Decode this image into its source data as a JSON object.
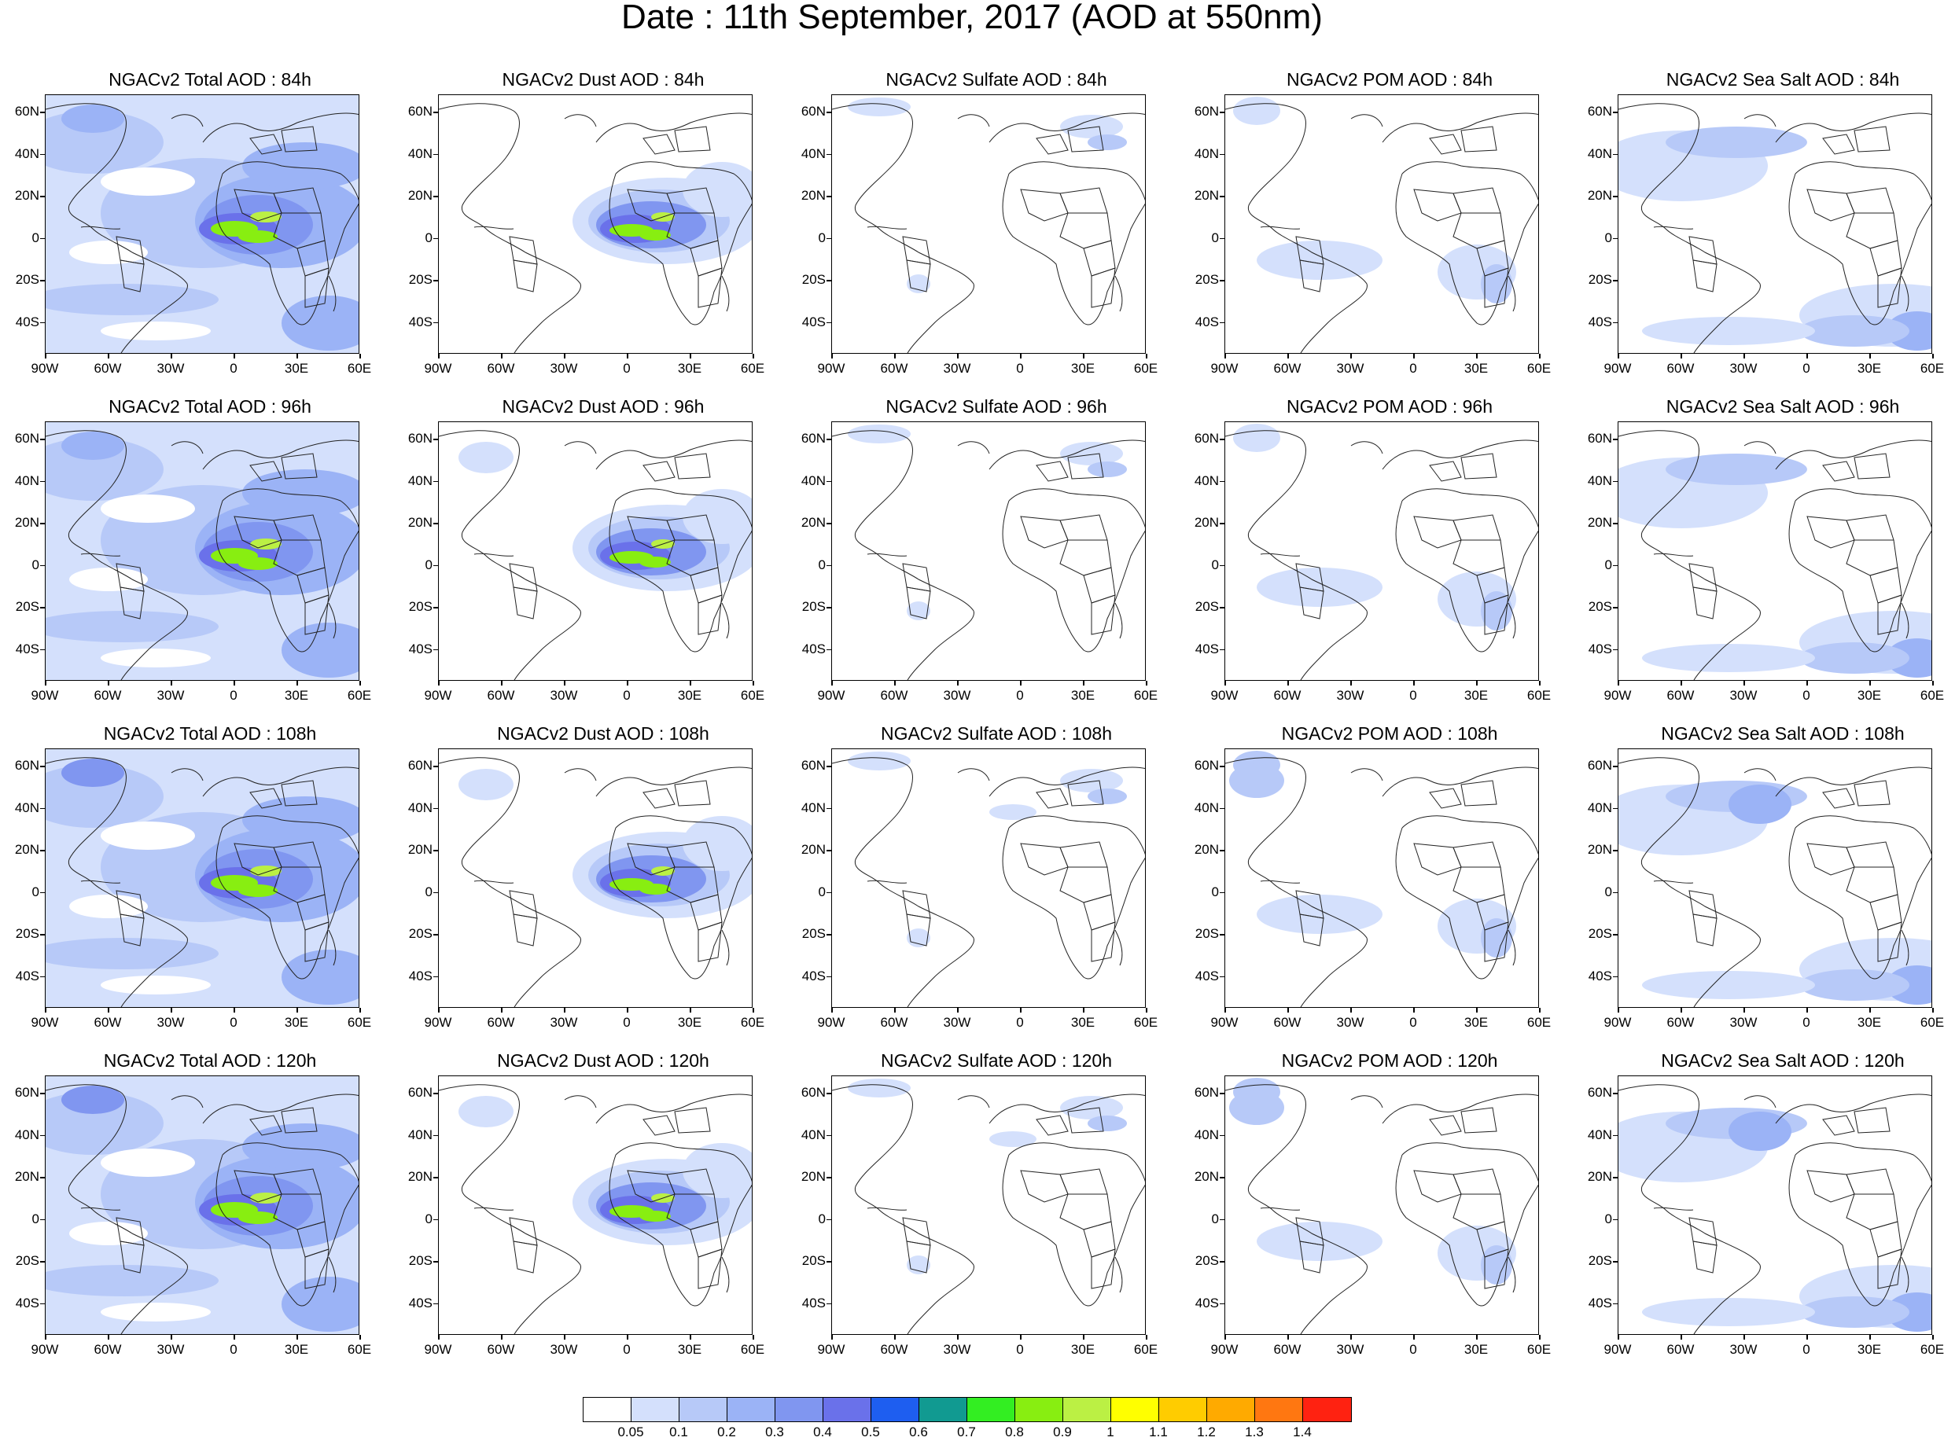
{
  "figure": {
    "title": "Date : 11th September, 2017 (AOD at 550nm)"
  },
  "axes": {
    "lat_labels": [
      "60N",
      "40N",
      "20N",
      "0",
      "20S",
      "40S"
    ],
    "lon_labels": [
      "90W",
      "60W",
      "30W",
      "0",
      "30E",
      "60E"
    ]
  },
  "panels": [
    {
      "title": "NGACv2 Total AOD : 84h",
      "species": "total"
    },
    {
      "title": "NGACv2 Dust AOD : 84h",
      "species": "dust"
    },
    {
      "title": "NGACv2 Sulfate AOD : 84h",
      "species": "sulfate"
    },
    {
      "title": "NGACv2 POM AOD : 84h",
      "species": "pom"
    },
    {
      "title": "NGACv2 Sea Salt AOD : 84h",
      "species": "seasalt"
    },
    {
      "title": "NGACv2 Total AOD : 96h",
      "species": "total"
    },
    {
      "title": "NGACv2 Dust AOD : 96h",
      "species": "dust"
    },
    {
      "title": "NGACv2 Sulfate AOD : 96h",
      "species": "sulfate"
    },
    {
      "title": "NGACv2 POM AOD : 96h",
      "species": "pom"
    },
    {
      "title": "NGACv2 Sea Salt AOD : 96h",
      "species": "seasalt"
    },
    {
      "title": "NGACv2 Total AOD : 108h",
      "species": "total"
    },
    {
      "title": "NGACv2 Dust AOD : 108h",
      "species": "dust"
    },
    {
      "title": "NGACv2 Sulfate AOD : 108h",
      "species": "sulfate"
    },
    {
      "title": "NGACv2 POM AOD : 108h",
      "species": "pom"
    },
    {
      "title": "NGACv2 Sea Salt AOD : 108h",
      "species": "seasalt"
    },
    {
      "title": "NGACv2 Total AOD : 120h",
      "species": "total"
    },
    {
      "title": "NGACv2 Dust AOD : 120h",
      "species": "dust"
    },
    {
      "title": "NGACv2 Sulfate AOD : 120h",
      "species": "sulfate"
    },
    {
      "title": "NGACv2 POM AOD : 120h",
      "species": "pom"
    },
    {
      "title": "NGACv2 Sea Salt  AOD : 120h",
      "species": "seasalt"
    }
  ],
  "colorbar": {
    "labels": [
      "0.05",
      "0.1",
      "0.2",
      "0.3",
      "0.4",
      "0.5",
      "0.6",
      "0.7",
      "0.8",
      "0.9",
      "1",
      "1.1",
      "1.2",
      "1.3",
      "1.4"
    ],
    "colors": [
      "#ffffff",
      "#d4e0fc",
      "#b7c9f8",
      "#9bb3f6",
      "#8096f0",
      "#6a71ea",
      "#1e5ef0",
      "#119a91",
      "#33ee22",
      "#88ee11",
      "#bbf044",
      "#ffff00",
      "#ffcc00",
      "#ffaa00",
      "#ff7711",
      "#ff2211"
    ]
  }
}
